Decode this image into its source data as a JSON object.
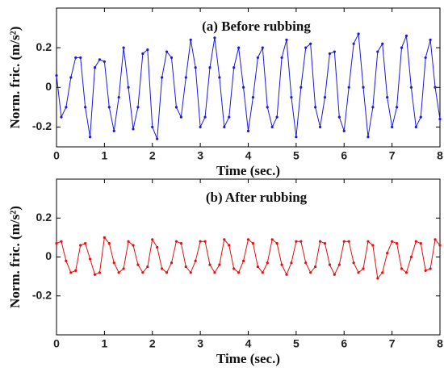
{
  "chart_data": [
    {
      "type": "line",
      "title": "(a) Before rubbing",
      "xlabel": "Time (sec.)",
      "ylabel": "Norm. fric. (m/s²)",
      "xlim": [
        0,
        8
      ],
      "xticks": [
        0,
        1,
        2,
        3,
        4,
        5,
        6,
        7,
        8
      ],
      "ylim": [
        -0.3,
        0.4
      ],
      "yticks": [
        -0.2,
        0,
        0.2
      ],
      "x": [
        0,
        0.1,
        0.2,
        0.3,
        0.4,
        0.5,
        0.6,
        0.7,
        0.8,
        0.9,
        1,
        1.1,
        1.2,
        1.3,
        1.4,
        1.5,
        1.6,
        1.7,
        1.8,
        1.9,
        2,
        2.1,
        2.2,
        2.3,
        2.4,
        2.5,
        2.6,
        2.7,
        2.8,
        2.9,
        3,
        3.1,
        3.2,
        3.3,
        3.4,
        3.5,
        3.6,
        3.7,
        3.8,
        3.9,
        4,
        4.1,
        4.2,
        4.3,
        4.4,
        4.5,
        4.6,
        4.7,
        4.8,
        4.9,
        5,
        5.1,
        5.2,
        5.3,
        5.4,
        5.5,
        5.6,
        5.7,
        5.8,
        5.9,
        6,
        6.1,
        6.2,
        6.3,
        6.4,
        6.5,
        6.6,
        6.7,
        6.8,
        6.9,
        7,
        7.1,
        7.2,
        7.3,
        7.4,
        7.5,
        7.6,
        7.7,
        7.8,
        7.9,
        8
      ],
      "series": [
        {
          "color": "#1a1adc",
          "values": [
            0.06,
            -0.15,
            -0.1,
            0.05,
            0.15,
            0.15,
            -0.1,
            -0.25,
            0.1,
            0.14,
            0.13,
            -0.1,
            -0.22,
            -0.05,
            0.2,
            0.0,
            -0.21,
            -0.1,
            0.17,
            0.19,
            -0.2,
            -0.26,
            0.05,
            0.18,
            0.15,
            -0.1,
            -0.15,
            0.05,
            0.24,
            0.1,
            -0.2,
            -0.15,
            0.1,
            0.25,
            0.05,
            -0.2,
            -0.15,
            0.1,
            0.2,
            0.0,
            -0.22,
            -0.05,
            0.15,
            0.2,
            -0.1,
            -0.2,
            -0.15,
            0.15,
            0.24,
            -0.05,
            -0.25,
            0.0,
            0.2,
            0.22,
            -0.1,
            -0.2,
            -0.05,
            0.17,
            0.18,
            -0.15,
            -0.22,
            0.0,
            0.22,
            0.27,
            0.0,
            -0.25,
            -0.1,
            0.18,
            0.22,
            -0.05,
            -0.2,
            -0.1,
            0.2,
            0.26,
            0.0,
            -0.2,
            -0.15,
            0.15,
            0.24,
            0.0,
            -0.16
          ]
        }
      ]
    },
    {
      "type": "line",
      "title": "(b) After rubbing",
      "xlabel": "Time (sec.)",
      "ylabel": "Norm. fric. (m/s²)",
      "xlim": [
        0,
        8
      ],
      "xticks": [
        0,
        1,
        2,
        3,
        4,
        5,
        6,
        7,
        8
      ],
      "ylim": [
        -0.4,
        0.4
      ],
      "yticks": [
        -0.2,
        0,
        0.2
      ],
      "x": [
        0,
        0.1,
        0.2,
        0.3,
        0.4,
        0.5,
        0.6,
        0.7,
        0.8,
        0.9,
        1,
        1.1,
        1.2,
        1.3,
        1.4,
        1.5,
        1.6,
        1.7,
        1.8,
        1.9,
        2,
        2.1,
        2.2,
        2.3,
        2.4,
        2.5,
        2.6,
        2.7,
        2.8,
        2.9,
        3,
        3.1,
        3.2,
        3.3,
        3.4,
        3.5,
        3.6,
        3.7,
        3.8,
        3.9,
        4,
        4.1,
        4.2,
        4.3,
        4.4,
        4.5,
        4.6,
        4.7,
        4.8,
        4.9,
        5,
        5.1,
        5.2,
        5.3,
        5.4,
        5.5,
        5.6,
        5.7,
        5.8,
        5.9,
        6,
        6.1,
        6.2,
        6.3,
        6.4,
        6.5,
        6.6,
        6.7,
        6.8,
        6.9,
        7,
        7.1,
        7.2,
        7.3,
        7.4,
        7.5,
        7.6,
        7.7,
        7.8,
        7.9,
        8
      ],
      "series": [
        {
          "color": "#e01010",
          "values": [
            0.07,
            0.08,
            -0.02,
            -0.08,
            -0.07,
            0.06,
            0.07,
            -0.01,
            -0.09,
            -0.08,
            0.1,
            0.07,
            -0.03,
            -0.08,
            -0.06,
            0.08,
            0.06,
            -0.04,
            -0.08,
            -0.05,
            0.09,
            0.05,
            -0.06,
            -0.08,
            -0.03,
            0.08,
            0.07,
            -0.05,
            -0.08,
            -0.02,
            0.08,
            0.08,
            -0.04,
            -0.08,
            -0.04,
            0.09,
            0.06,
            -0.06,
            -0.08,
            -0.02,
            0.09,
            0.07,
            -0.05,
            -0.08,
            -0.03,
            0.09,
            0.07,
            -0.04,
            -0.09,
            -0.03,
            0.08,
            0.08,
            -0.03,
            -0.08,
            -0.05,
            0.08,
            0.07,
            -0.04,
            -0.09,
            -0.04,
            0.08,
            0.08,
            -0.03,
            -0.08,
            -0.06,
            0.08,
            0.06,
            -0.11,
            -0.08,
            0.02,
            0.08,
            0.07,
            -0.06,
            -0.08,
            0.0,
            0.08,
            0.07,
            -0.07,
            -0.06,
            0.09,
            0.06
          ]
        }
      ]
    }
  ]
}
